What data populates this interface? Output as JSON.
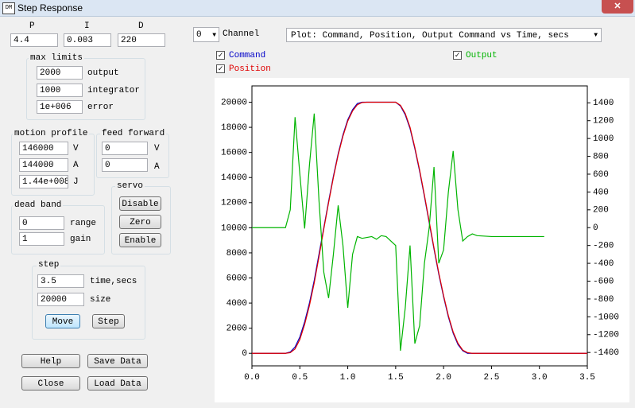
{
  "window": {
    "title": "Step Response"
  },
  "pid": {
    "headers": [
      "P",
      "I",
      "D"
    ],
    "values": [
      "4.4",
      "0.003",
      "220"
    ]
  },
  "max_limits": {
    "title": "max limits",
    "rows": [
      {
        "value": "2000",
        "label": "output"
      },
      {
        "value": "1000",
        "label": "integrator"
      },
      {
        "value": "1e+006",
        "label": "error"
      }
    ]
  },
  "motion_profile": {
    "title": "motion profile",
    "rows": [
      {
        "value": "146000",
        "label": "V"
      },
      {
        "value": "144000",
        "label": "A"
      },
      {
        "value": "1.44e+008",
        "label": "J"
      }
    ]
  },
  "feed_forward": {
    "title": "feed forward",
    "rows": [
      {
        "value": "0",
        "label": "V"
      },
      {
        "value": "0",
        "label": "A"
      }
    ]
  },
  "servo": {
    "title": "servo",
    "buttons": [
      "Disable",
      "Zero",
      "Enable"
    ]
  },
  "dead_band": {
    "title": "dead band",
    "rows": [
      {
        "value": "0",
        "label": "range"
      },
      {
        "value": "1",
        "label": "gain"
      }
    ]
  },
  "step": {
    "title": "step",
    "rows": [
      {
        "value": "3.5",
        "label": "time,secs"
      },
      {
        "value": "20000",
        "label": "size"
      }
    ],
    "buttons": [
      "Move",
      "Step"
    ]
  },
  "buttons": [
    "Help",
    "Save Data",
    "Close",
    "Load Data"
  ],
  "channel": {
    "value": "0",
    "label": "Channel"
  },
  "plot_select": "Plot: Command, Position, Output Command vs Time, secs",
  "chart_data": {
    "type": "line",
    "x": [
      0,
      0.35,
      0.4,
      0.45,
      0.5,
      0.55,
      0.6,
      0.65,
      0.7,
      0.75,
      0.8,
      0.85,
      0.9,
      0.95,
      1.0,
      1.05,
      1.1,
      1.15,
      1.2,
      1.25,
      1.3,
      1.35,
      1.4,
      1.45,
      1.5,
      1.55,
      1.6,
      1.65,
      1.7,
      1.75,
      1.8,
      1.85,
      1.9,
      1.95,
      2.0,
      2.05,
      2.1,
      2.15,
      2.2,
      2.25,
      2.3,
      2.35,
      2.5,
      3.05,
      3.5
    ],
    "series": [
      {
        "name": "Command",
        "color": "#0000c8",
        "values": [
          0,
          0,
          100,
          500,
          1300,
          2500,
          4000,
          5800,
          7900,
          10000,
          12100,
          14100,
          15900,
          17400,
          18600,
          19400,
          19900,
          20000,
          20000,
          20000,
          20000,
          20000,
          20000,
          20000,
          20000,
          19700,
          19000,
          17900,
          16300,
          14500,
          12500,
          10400,
          8300,
          6300,
          4500,
          2900,
          1600,
          700,
          200,
          0,
          0,
          0,
          0,
          0,
          0
        ]
      },
      {
        "name": "Position",
        "color": "#e00000",
        "values": [
          0,
          0,
          50,
          350,
          1100,
          2300,
          3800,
          5600,
          7700,
          9900,
          12000,
          14000,
          15800,
          17300,
          18500,
          19300,
          19800,
          19980,
          20000,
          20000,
          20000,
          20000,
          20000,
          20000,
          20000,
          19750,
          19100,
          18000,
          16400,
          14600,
          12600,
          10500,
          8400,
          6400,
          4600,
          3000,
          1700,
          800,
          250,
          50,
          0,
          0,
          0,
          0,
          0
        ]
      },
      {
        "name": "Output",
        "color": "#00b400",
        "axis": "y2",
        "values": [
          0,
          0,
          200,
          1240,
          600,
          -10,
          700,
          1280,
          300,
          -500,
          -790,
          -300,
          250,
          -200,
          -900,
          -300,
          -100,
          -120,
          -110,
          -100,
          -130,
          -90,
          -100,
          -150,
          -200,
          -1380,
          -900,
          -200,
          -1300,
          -1100,
          -400,
          0,
          680,
          -400,
          -250,
          400,
          860,
          200,
          -150,
          -100,
          -70,
          -90,
          -100,
          -100,
          null
        ]
      }
    ],
    "xlim": [
      0,
      3.5
    ],
    "xticks": [
      {
        "value": 0,
        "label": "0.0"
      },
      0.5,
      {
        "value": 1,
        "label": "1.0"
      },
      1.5,
      {
        "value": 2,
        "label": "2.0"
      },
      2.5,
      {
        "value": 3,
        "label": "3.0"
      },
      3.5
    ],
    "ylim": [
      -1000,
      21300
    ],
    "yticks": [
      0,
      2000,
      4000,
      6000,
      8000,
      10000,
      12000,
      14000,
      16000,
      18000,
      20000
    ],
    "y2lim": [
      -1550,
      1590
    ],
    "y2ticks": [
      -1400,
      -1200,
      -1000,
      -800,
      -600,
      -400,
      -200,
      0,
      200,
      400,
      600,
      800,
      1000,
      1200,
      1400
    ],
    "grid": false
  }
}
